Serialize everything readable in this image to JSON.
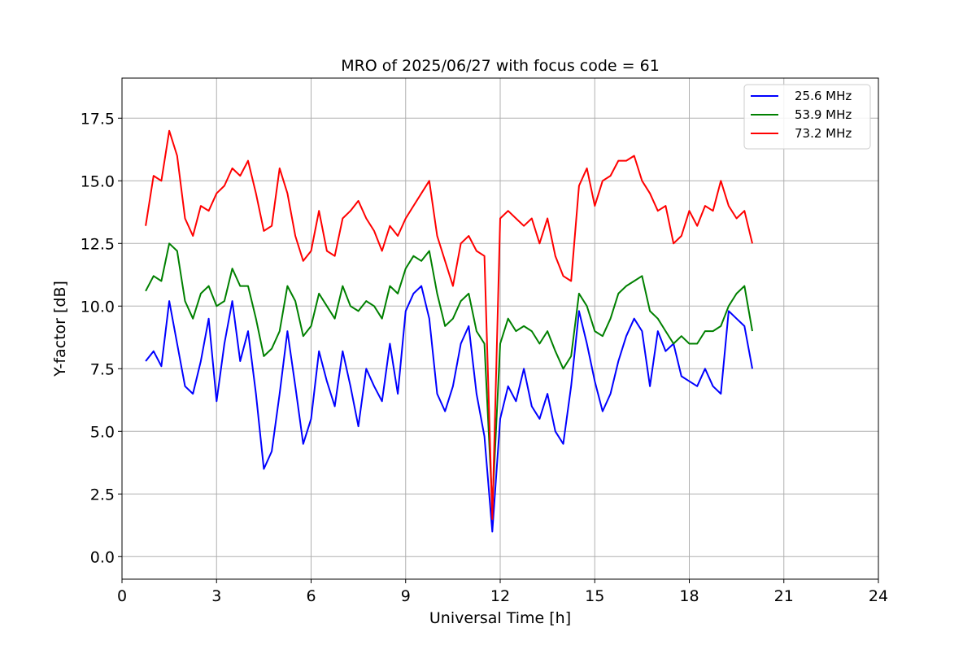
{
  "chart_data": {
    "type": "line",
    "title": "MRO of 2025/06/27 with focus code = 61",
    "xlabel": "Universal Time [h]",
    "ylabel": "Y-factor [dB]",
    "xlim": [
      0,
      24
    ],
    "ylim": [
      -0.9,
      19.1
    ],
    "xticks": [
      0,
      3,
      6,
      9,
      12,
      15,
      18,
      21,
      24
    ],
    "xtick_labels": [
      "0",
      "3",
      "6",
      "9",
      "12",
      "15",
      "18",
      "21",
      "24"
    ],
    "yticks": [
      0,
      2.5,
      5,
      7.5,
      10,
      12.5,
      15,
      17.5
    ],
    "ytick_labels": [
      "0.0",
      "2.5",
      "5.0",
      "7.5",
      "10.0",
      "12.5",
      "15.0",
      "17.5"
    ],
    "grid": true,
    "legend_position": "upper right",
    "series": [
      {
        "name": "25.6 MHz",
        "color": "#0000ff",
        "x": [
          0.75,
          1.0,
          1.25,
          1.5,
          1.75,
          2.0,
          2.25,
          2.5,
          2.75,
          3.0,
          3.25,
          3.5,
          3.75,
          4.0,
          4.25,
          4.5,
          4.75,
          5.0,
          5.25,
          5.5,
          5.75,
          6.0,
          6.25,
          6.5,
          6.75,
          7.0,
          7.25,
          7.5,
          7.75,
          8.0,
          8.25,
          8.5,
          8.75,
          9.0,
          9.25,
          9.5,
          9.75,
          10.0,
          10.25,
          10.5,
          10.75,
          11.0,
          11.25,
          11.5,
          11.75,
          12.0,
          12.25,
          12.5,
          12.75,
          13.0,
          13.25,
          13.5,
          13.75,
          14.0,
          14.25,
          14.5,
          14.75,
          15.0,
          15.25,
          15.5,
          15.75,
          16.0,
          16.25,
          16.5,
          16.75,
          17.0,
          17.25,
          17.5,
          17.75,
          18.0,
          18.25,
          18.5,
          18.75,
          19.0,
          19.25,
          19.5,
          19.75,
          20.0
        ],
        "y": [
          7.8,
          8.2,
          7.6,
          10.2,
          8.5,
          6.8,
          6.5,
          7.8,
          9.5,
          6.2,
          8.5,
          10.2,
          7.8,
          9.0,
          6.5,
          3.5,
          4.2,
          6.5,
          9.0,
          6.8,
          4.5,
          5.5,
          8.2,
          7.0,
          6.0,
          8.2,
          6.8,
          5.2,
          7.5,
          6.8,
          6.2,
          8.5,
          6.5,
          9.8,
          10.5,
          10.8,
          9.5,
          6.5,
          5.8,
          6.8,
          8.5,
          9.2,
          6.5,
          4.8,
          1.0,
          5.5,
          6.8,
          6.2,
          7.5,
          6.0,
          5.5,
          6.5,
          5.0,
          4.5,
          6.8,
          9.8,
          8.5,
          7.0,
          5.8,
          6.5,
          7.8,
          8.8,
          9.5,
          9.0,
          6.8,
          9.0,
          8.2,
          8.5,
          7.2,
          7.0,
          6.8,
          7.5,
          6.8,
          6.5,
          9.8,
          9.5,
          9.2,
          7.5
        ]
      },
      {
        "name": "53.9 MHz",
        "color": "#008000",
        "x": [
          0.75,
          1.0,
          1.25,
          1.5,
          1.75,
          2.0,
          2.25,
          2.5,
          2.75,
          3.0,
          3.25,
          3.5,
          3.75,
          4.0,
          4.25,
          4.5,
          4.75,
          5.0,
          5.25,
          5.5,
          5.75,
          6.0,
          6.25,
          6.5,
          6.75,
          7.0,
          7.25,
          7.5,
          7.75,
          8.0,
          8.25,
          8.5,
          8.75,
          9.0,
          9.25,
          9.5,
          9.75,
          10.0,
          10.25,
          10.5,
          10.75,
          11.0,
          11.25,
          11.5,
          11.75,
          12.0,
          12.25,
          12.5,
          12.75,
          13.0,
          13.25,
          13.5,
          13.75,
          14.0,
          14.25,
          14.5,
          14.75,
          15.0,
          15.25,
          15.5,
          15.75,
          16.0,
          16.25,
          16.5,
          16.75,
          17.0,
          17.25,
          17.5,
          17.75,
          18.0,
          18.25,
          18.5,
          18.75,
          19.0,
          19.25,
          19.5,
          19.75,
          20.0
        ],
        "y": [
          10.6,
          11.2,
          11.0,
          12.5,
          12.2,
          10.2,
          9.5,
          10.5,
          10.8,
          10.0,
          10.2,
          11.5,
          10.8,
          10.8,
          9.5,
          8.0,
          8.3,
          9.0,
          10.8,
          10.2,
          8.8,
          9.2,
          10.5,
          10.0,
          9.5,
          10.8,
          10.0,
          9.8,
          10.2,
          10.0,
          9.5,
          10.8,
          10.5,
          11.5,
          12.0,
          11.8,
          12.2,
          10.5,
          9.2,
          9.5,
          10.2,
          10.5,
          9.0,
          8.5,
          2.0,
          8.5,
          9.5,
          9.0,
          9.2,
          9.0,
          8.5,
          9.0,
          8.2,
          7.5,
          8.0,
          10.5,
          10.0,
          9.0,
          8.8,
          9.5,
          10.5,
          10.8,
          11.0,
          11.2,
          9.8,
          9.5,
          9.0,
          8.5,
          8.8,
          8.5,
          8.5,
          9.0,
          9.0,
          9.2,
          10.0,
          10.5,
          10.8,
          9.0
        ]
      },
      {
        "name": "73.2 MHz",
        "color": "#ff0000",
        "x": [
          0.75,
          1.0,
          1.25,
          1.5,
          1.75,
          2.0,
          2.25,
          2.5,
          2.75,
          3.0,
          3.25,
          3.5,
          3.75,
          4.0,
          4.25,
          4.5,
          4.75,
          5.0,
          5.25,
          5.5,
          5.75,
          6.0,
          6.25,
          6.5,
          6.75,
          7.0,
          7.25,
          7.5,
          7.75,
          8.0,
          8.25,
          8.5,
          8.75,
          9.0,
          9.25,
          9.5,
          9.75,
          10.0,
          10.25,
          10.5,
          10.75,
          11.0,
          11.25,
          11.5,
          11.75,
          12.0,
          12.25,
          12.5,
          12.75,
          13.0,
          13.25,
          13.5,
          13.75,
          14.0,
          14.25,
          14.5,
          14.75,
          15.0,
          15.25,
          15.5,
          15.75,
          16.0,
          16.25,
          16.5,
          16.75,
          17.0,
          17.25,
          17.5,
          17.75,
          18.0,
          18.25,
          18.5,
          18.75,
          19.0,
          19.25,
          19.5,
          19.75,
          20.0
        ],
        "y": [
          13.2,
          15.2,
          15.0,
          17.0,
          16.0,
          13.5,
          12.8,
          14.0,
          13.8,
          14.5,
          14.8,
          15.5,
          15.2,
          15.8,
          14.5,
          13.0,
          13.2,
          15.5,
          14.5,
          12.8,
          11.8,
          12.2,
          13.8,
          12.2,
          12.0,
          13.5,
          13.8,
          14.2,
          13.5,
          13.0,
          12.2,
          13.2,
          12.8,
          13.5,
          14.0,
          14.5,
          15.0,
          12.8,
          11.8,
          10.8,
          12.5,
          12.8,
          12.2,
          12.0,
          1.5,
          13.5,
          13.8,
          13.5,
          13.2,
          13.5,
          12.5,
          13.5,
          12.0,
          11.2,
          11.0,
          14.8,
          15.5,
          14.0,
          15.0,
          15.2,
          15.8,
          15.8,
          16.0,
          15.0,
          14.5,
          13.8,
          14.0,
          12.5,
          12.8,
          13.8,
          13.2,
          14.0,
          13.8,
          15.0,
          14.0,
          13.5,
          13.8,
          12.5
        ]
      }
    ]
  }
}
